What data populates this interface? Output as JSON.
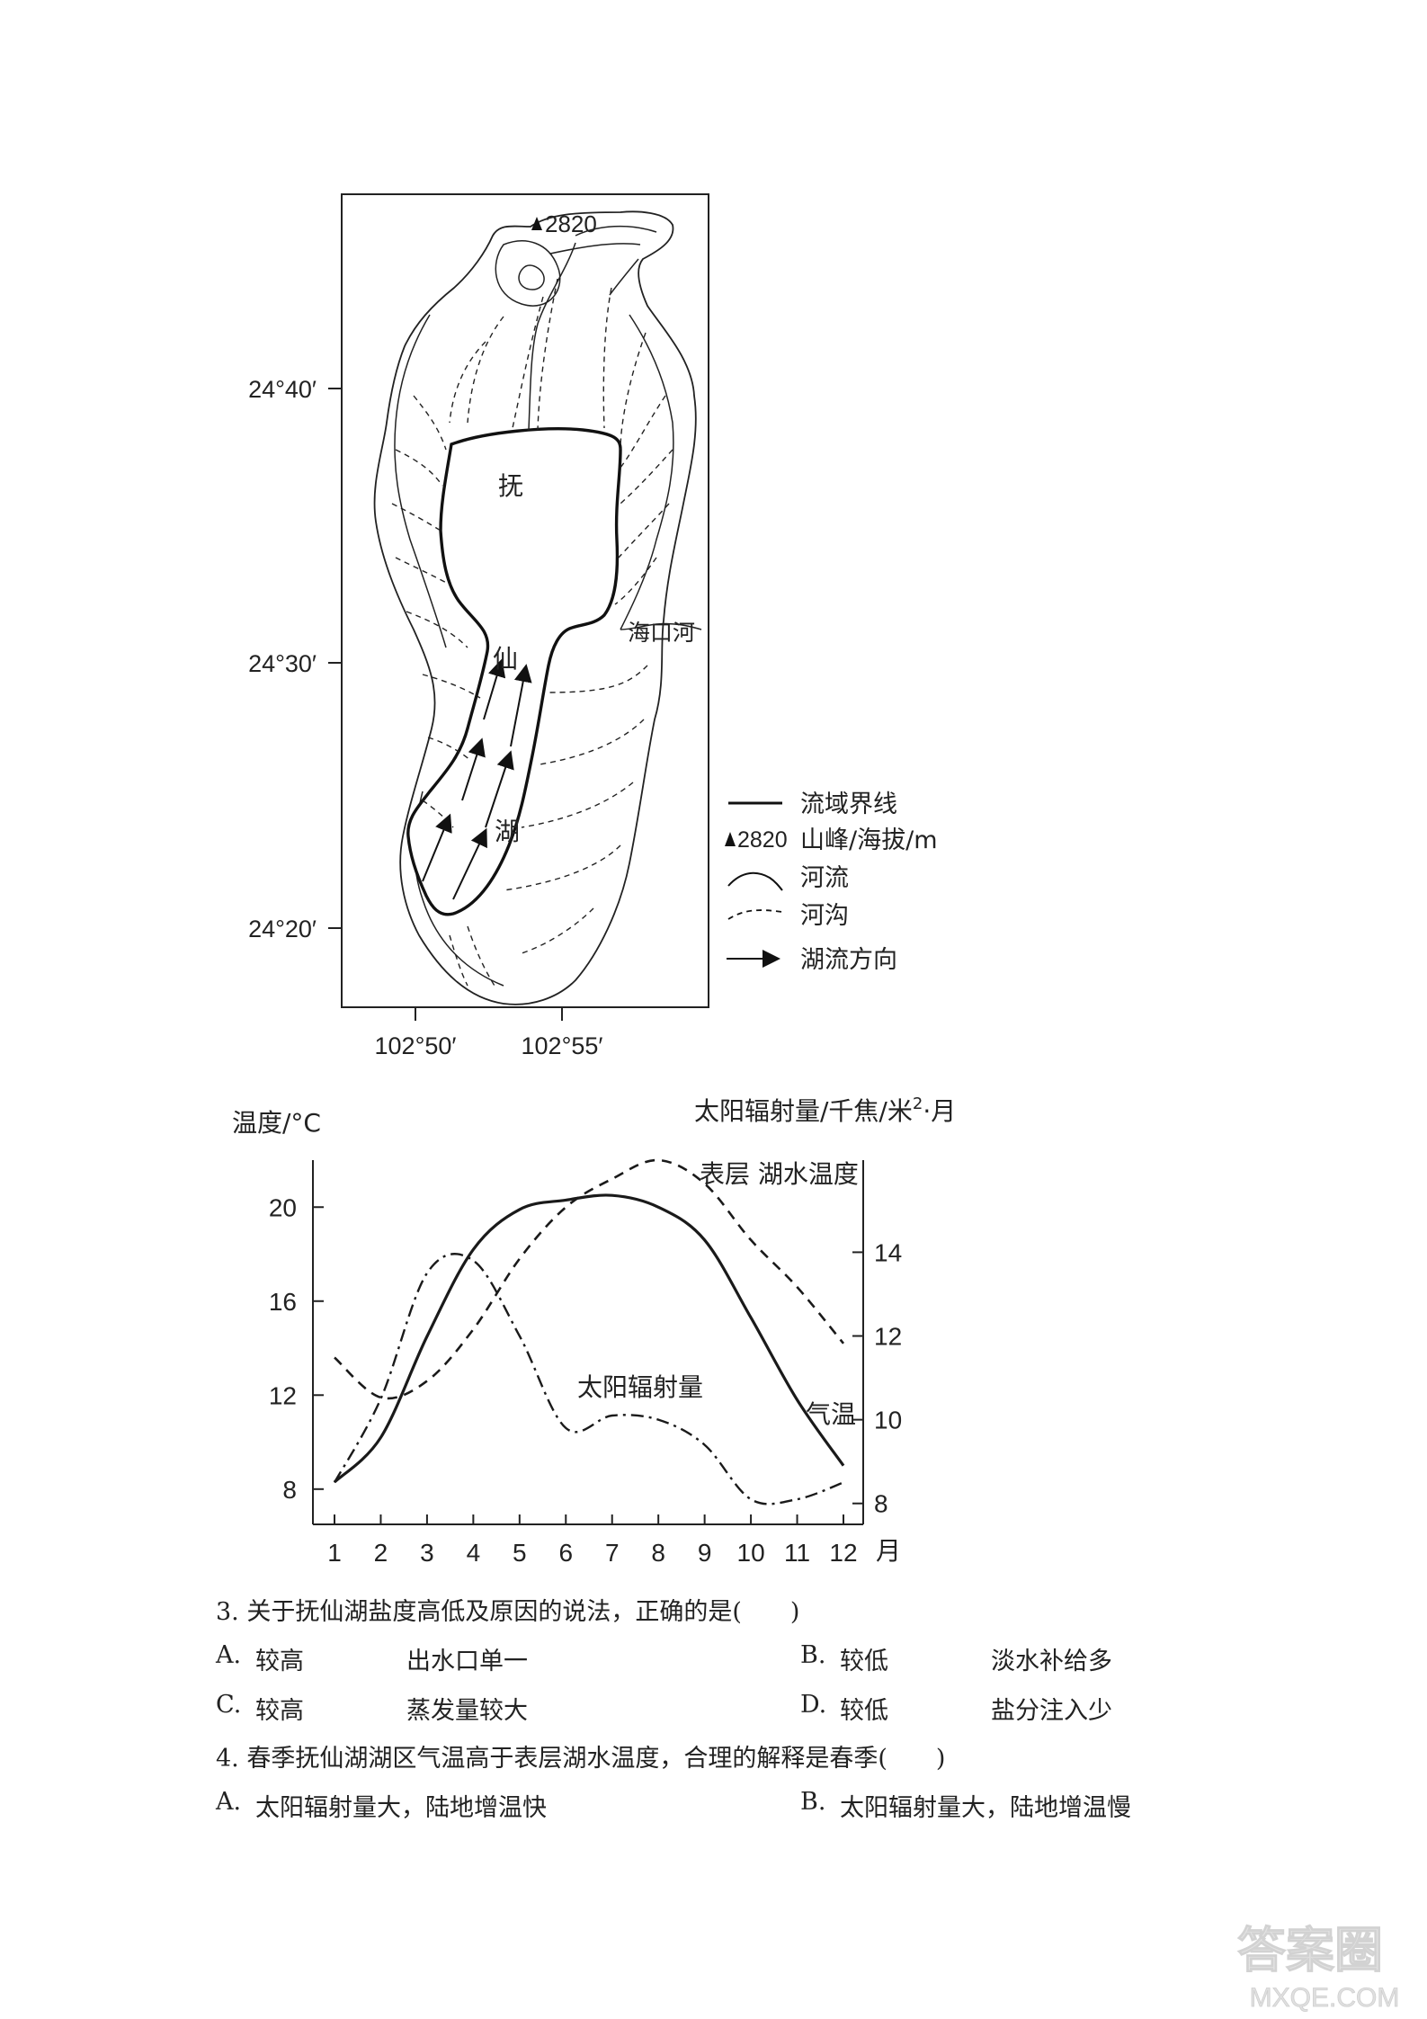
{
  "map": {
    "peak_label": "2820",
    "lake_chars": [
      "抚",
      "仙",
      "湖"
    ],
    "river_label": "海口河",
    "lat_labels": [
      "24°40′",
      "24°30′",
      "24°20′"
    ],
    "lon_labels": [
      "102°50′",
      "102°55′"
    ],
    "legend": {
      "boundary": "流域界线",
      "peak_num": "2820",
      "peak": "山峰/海拔/m",
      "river": "河流",
      "gully": "河沟",
      "flow": "湖流方向"
    }
  },
  "chart_data": {
    "type": "line",
    "ylabel": "温度/°C",
    "y2label_main": "太阳辐射量/千焦/米",
    "y2label_sup": "2",
    "y2label_end": "·月",
    "x": [
      1,
      2,
      3,
      4,
      5,
      6,
      7,
      8,
      9,
      10,
      11,
      12
    ],
    "x_unit": "月",
    "ylim": [
      6.5,
      22
    ],
    "yticks": [
      8,
      12,
      16,
      20
    ],
    "y2lim": [
      7.5,
      16.2
    ],
    "y2ticks": [
      8,
      10,
      12,
      14
    ],
    "series": [
      {
        "name": "气温",
        "axis": "left",
        "style": "solid",
        "values": [
          8.3,
          10.2,
          14.5,
          18.2,
          19.9,
          20.3,
          20.5,
          20.0,
          18.6,
          15.3,
          11.8,
          9.0
        ]
      },
      {
        "name": "表层 湖水温度",
        "axis": "left",
        "style": "dashed",
        "values": [
          13.6,
          11.9,
          12.6,
          14.8,
          17.8,
          20.0,
          21.2,
          22.0,
          21.0,
          18.6,
          16.6,
          14.2
        ]
      },
      {
        "name": "太阳辐射量",
        "axis": "right",
        "style": "dashdot",
        "values": [
          8.5,
          10.5,
          13.5,
          13.8,
          12.0,
          9.8,
          10.1,
          10.0,
          9.4,
          8.1,
          8.1,
          8.5
        ]
      }
    ]
  },
  "questions": [
    {
      "stem": "3. 关于抚仙湖盐度高低及原因的说法，正确的是(　　)",
      "options": [
        {
          "letter": "A.",
          "level": "较高",
          "reason": "出水口单一"
        },
        {
          "letter": "B.",
          "level": "较低",
          "reason": "淡水补给多"
        },
        {
          "letter": "C.",
          "level": "较高",
          "reason": "蒸发量较大"
        },
        {
          "letter": "D.",
          "level": "较低",
          "reason": "盐分注入少"
        }
      ]
    },
    {
      "stem": "4. 春季抚仙湖湖区气温高于表层湖水温度，合理的解释是春季(　　)",
      "options": [
        {
          "letter": "A.",
          "text": "太阳辐射量大，陆地增温快"
        },
        {
          "letter": "B.",
          "text": "太阳辐射量大，陆地增温慢"
        }
      ]
    }
  ],
  "watermark": {
    "main": "答案圈",
    "sub": "MXQE.COM"
  }
}
